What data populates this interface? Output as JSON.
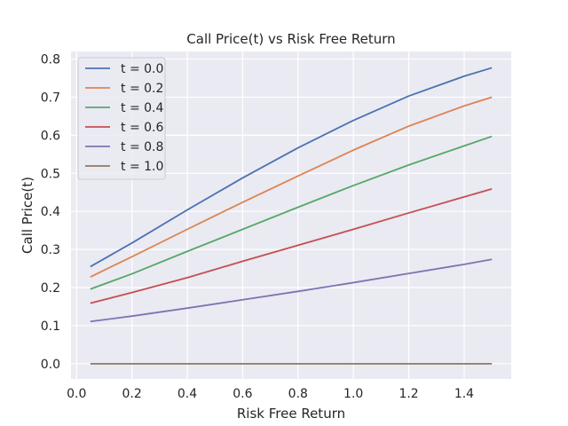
{
  "chart_data": {
    "type": "line",
    "title": "Call Price(t) vs Risk Free Return",
    "xlabel": "Risk Free Return",
    "ylabel": "Call Price(t)",
    "xlim": [
      -0.02,
      1.57
    ],
    "ylim": [
      -0.04,
      0.82
    ],
    "xticks": [
      0.0,
      0.2,
      0.4,
      0.6,
      0.8,
      1.0,
      1.2,
      1.4
    ],
    "xtick_labels": [
      "0.0",
      "0.2",
      "0.4",
      "0.6",
      "0.8",
      "1.0",
      "1.2",
      "1.4"
    ],
    "yticks": [
      0.0,
      0.1,
      0.2,
      0.3,
      0.4,
      0.5,
      0.6,
      0.7,
      0.8
    ],
    "ytick_labels": [
      "0.0",
      "0.1",
      "0.2",
      "0.3",
      "0.4",
      "0.5",
      "0.6",
      "0.7",
      "0.8"
    ],
    "grid": true,
    "legend_position": "top-left",
    "x": [
      0.05,
      0.2,
      0.4,
      0.6,
      0.8,
      1.0,
      1.2,
      1.4,
      1.5
    ],
    "series": [
      {
        "name": "t = 0.0",
        "color": "#4c72b0",
        "values": [
          0.255,
          0.317,
          0.404,
          0.488,
          0.567,
          0.639,
          0.703,
          0.755,
          0.777
        ]
      },
      {
        "name": "t = 0.2",
        "color": "#dd8452",
        "values": [
          0.228,
          0.281,
          0.353,
          0.424,
          0.493,
          0.561,
          0.624,
          0.677,
          0.7
        ]
      },
      {
        "name": "t = 0.4",
        "color": "#55a868",
        "values": [
          0.196,
          0.236,
          0.295,
          0.353,
          0.411,
          0.468,
          0.522,
          0.572,
          0.597
        ]
      },
      {
        "name": "t = 0.6",
        "color": "#c44e52",
        "values": [
          0.159,
          0.187,
          0.226,
          0.269,
          0.311,
          0.353,
          0.396,
          0.438,
          0.459
        ]
      },
      {
        "name": "t = 0.8",
        "color": "#8172b3",
        "values": [
          0.111,
          0.125,
          0.146,
          0.168,
          0.19,
          0.213,
          0.237,
          0.261,
          0.274
        ]
      },
      {
        "name": "t = 1.0",
        "color": "#937860",
        "values": [
          0.0,
          0.0,
          0.0,
          0.0,
          0.0,
          0.0,
          0.0,
          0.0,
          0.0
        ]
      }
    ]
  }
}
